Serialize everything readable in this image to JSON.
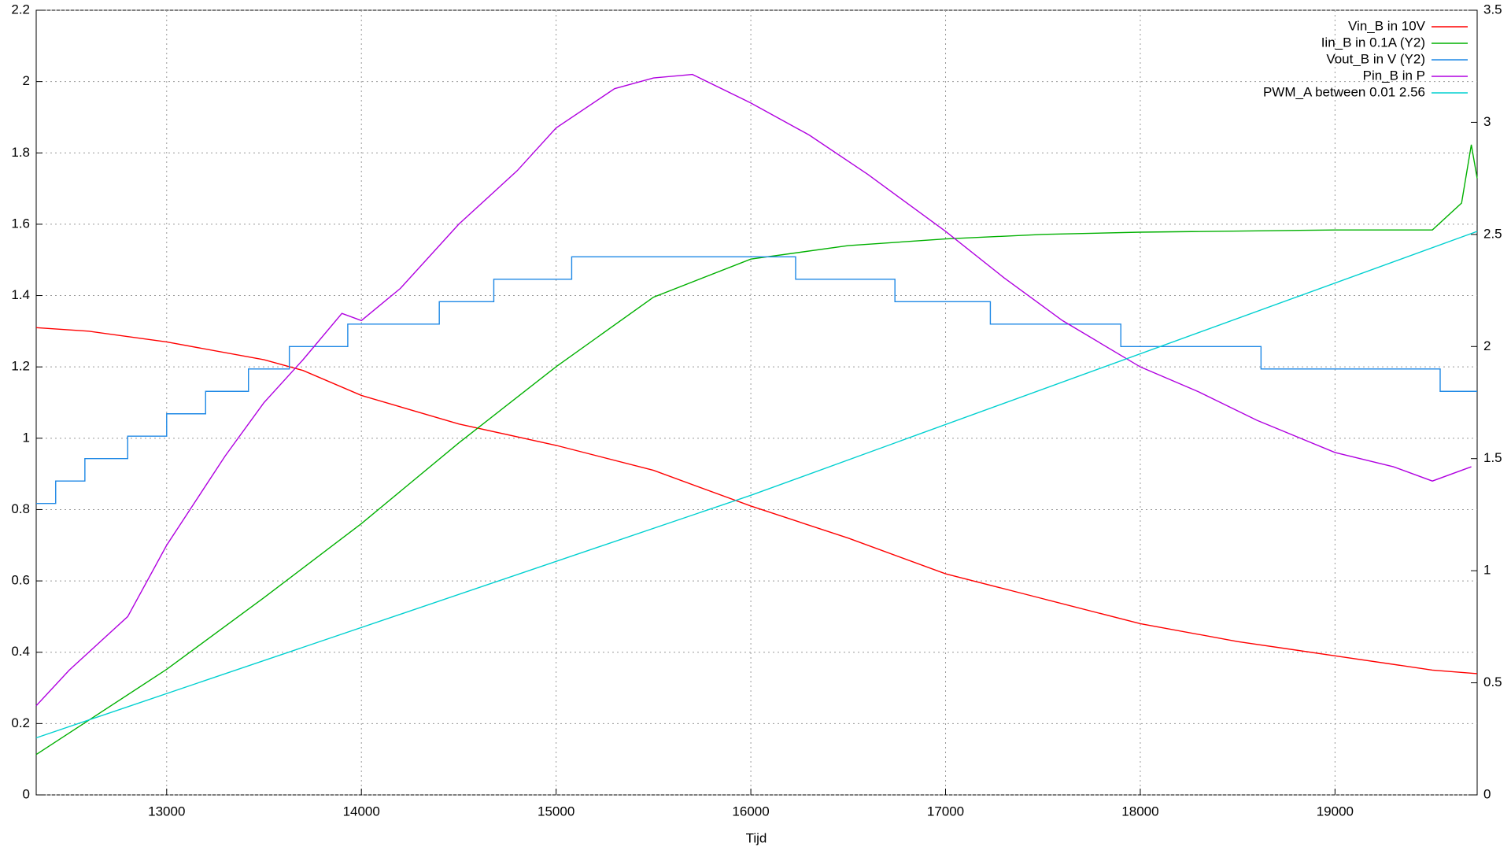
{
  "chart_data": {
    "type": "line",
    "xlabel": "Tijd",
    "xlim": [
      12330,
      19730
    ],
    "xticks": [
      13000,
      14000,
      15000,
      16000,
      17000,
      18000,
      19000
    ],
    "ylim": [
      0,
      2.2
    ],
    "yticks": [
      0,
      0.2,
      0.4,
      0.6,
      0.8,
      1,
      1.2,
      1.4,
      1.6,
      1.8,
      2,
      2.2
    ],
    "y2lim": [
      0,
      3.5
    ],
    "y2ticks": [
      0,
      0.5,
      1,
      1.5,
      2,
      2.5,
      3,
      3.5
    ],
    "grid": true,
    "legend": "top-right",
    "series": [
      {
        "name": "Vin_B in 10V",
        "color": "#ff0000",
        "x": [
          12330,
          12600,
          13000,
          13500,
          13700,
          14000,
          14500,
          15000,
          15500,
          16000,
          16500,
          17000,
          17500,
          18000,
          18500,
          19000,
          19500,
          19730
        ],
        "values": [
          1.31,
          1.3,
          1.27,
          1.22,
          1.19,
          1.12,
          1.04,
          0.98,
          0.91,
          0.81,
          0.72,
          0.62,
          0.55,
          0.48,
          0.43,
          0.39,
          0.35,
          0.34
        ]
      },
      {
        "name": "Iin_B in 0.1A (Y2)",
        "color": "#00b000",
        "axis": "y2",
        "x": [
          12330,
          13000,
          13500,
          14000,
          14500,
          15000,
          15500,
          16000,
          16500,
          17000,
          17500,
          18000,
          19000,
          19500,
          19650,
          19700,
          19730
        ],
        "values": [
          0.18,
          0.56,
          0.88,
          1.21,
          1.57,
          1.91,
          2.22,
          2.39,
          2.45,
          2.48,
          2.5,
          2.51,
          2.52,
          2.52,
          2.64,
          2.9,
          2.75
        ]
      },
      {
        "name": "Vout_B in V (Y2)",
        "color": "#1e88e5",
        "axis": "y2",
        "step": true,
        "x": [
          12330,
          12430,
          12580,
          12800,
          13000,
          13200,
          13420,
          13630,
          13930,
          14400,
          14680,
          15080,
          16230,
          16740,
          17230,
          17900,
          18620,
          19540,
          19730
        ],
        "values": [
          1.3,
          1.4,
          1.5,
          1.6,
          1.7,
          1.8,
          1.9,
          2.0,
          2.1,
          2.2,
          2.3,
          2.4,
          2.3,
          2.2,
          2.1,
          2.0,
          1.9,
          1.8,
          1.8
        ]
      },
      {
        "name": "Pin_B in P",
        "color": "#b000e0",
        "x": [
          12330,
          12500,
          12800,
          13000,
          13300,
          13500,
          13700,
          13900,
          14000,
          14200,
          14500,
          14800,
          15000,
          15300,
          15500,
          15700,
          16000,
          16300,
          16600,
          17000,
          17300,
          17600,
          18000,
          18300,
          18600,
          19000,
          19300,
          19500,
          19700
        ],
        "values": [
          0.25,
          0.35,
          0.5,
          0.7,
          0.95,
          1.1,
          1.22,
          1.35,
          1.33,
          1.42,
          1.6,
          1.75,
          1.87,
          1.98,
          2.01,
          2.02,
          1.94,
          1.85,
          1.74,
          1.58,
          1.45,
          1.33,
          1.2,
          1.13,
          1.05,
          0.96,
          0.92,
          0.88,
          0.92
        ]
      },
      {
        "name": "PWM_A between 0.01 2.56",
        "color": "#00d0d0",
        "x": [
          12330,
          16000,
          19730
        ],
        "values": [
          0.16,
          0.84,
          1.58
        ]
      }
    ]
  }
}
